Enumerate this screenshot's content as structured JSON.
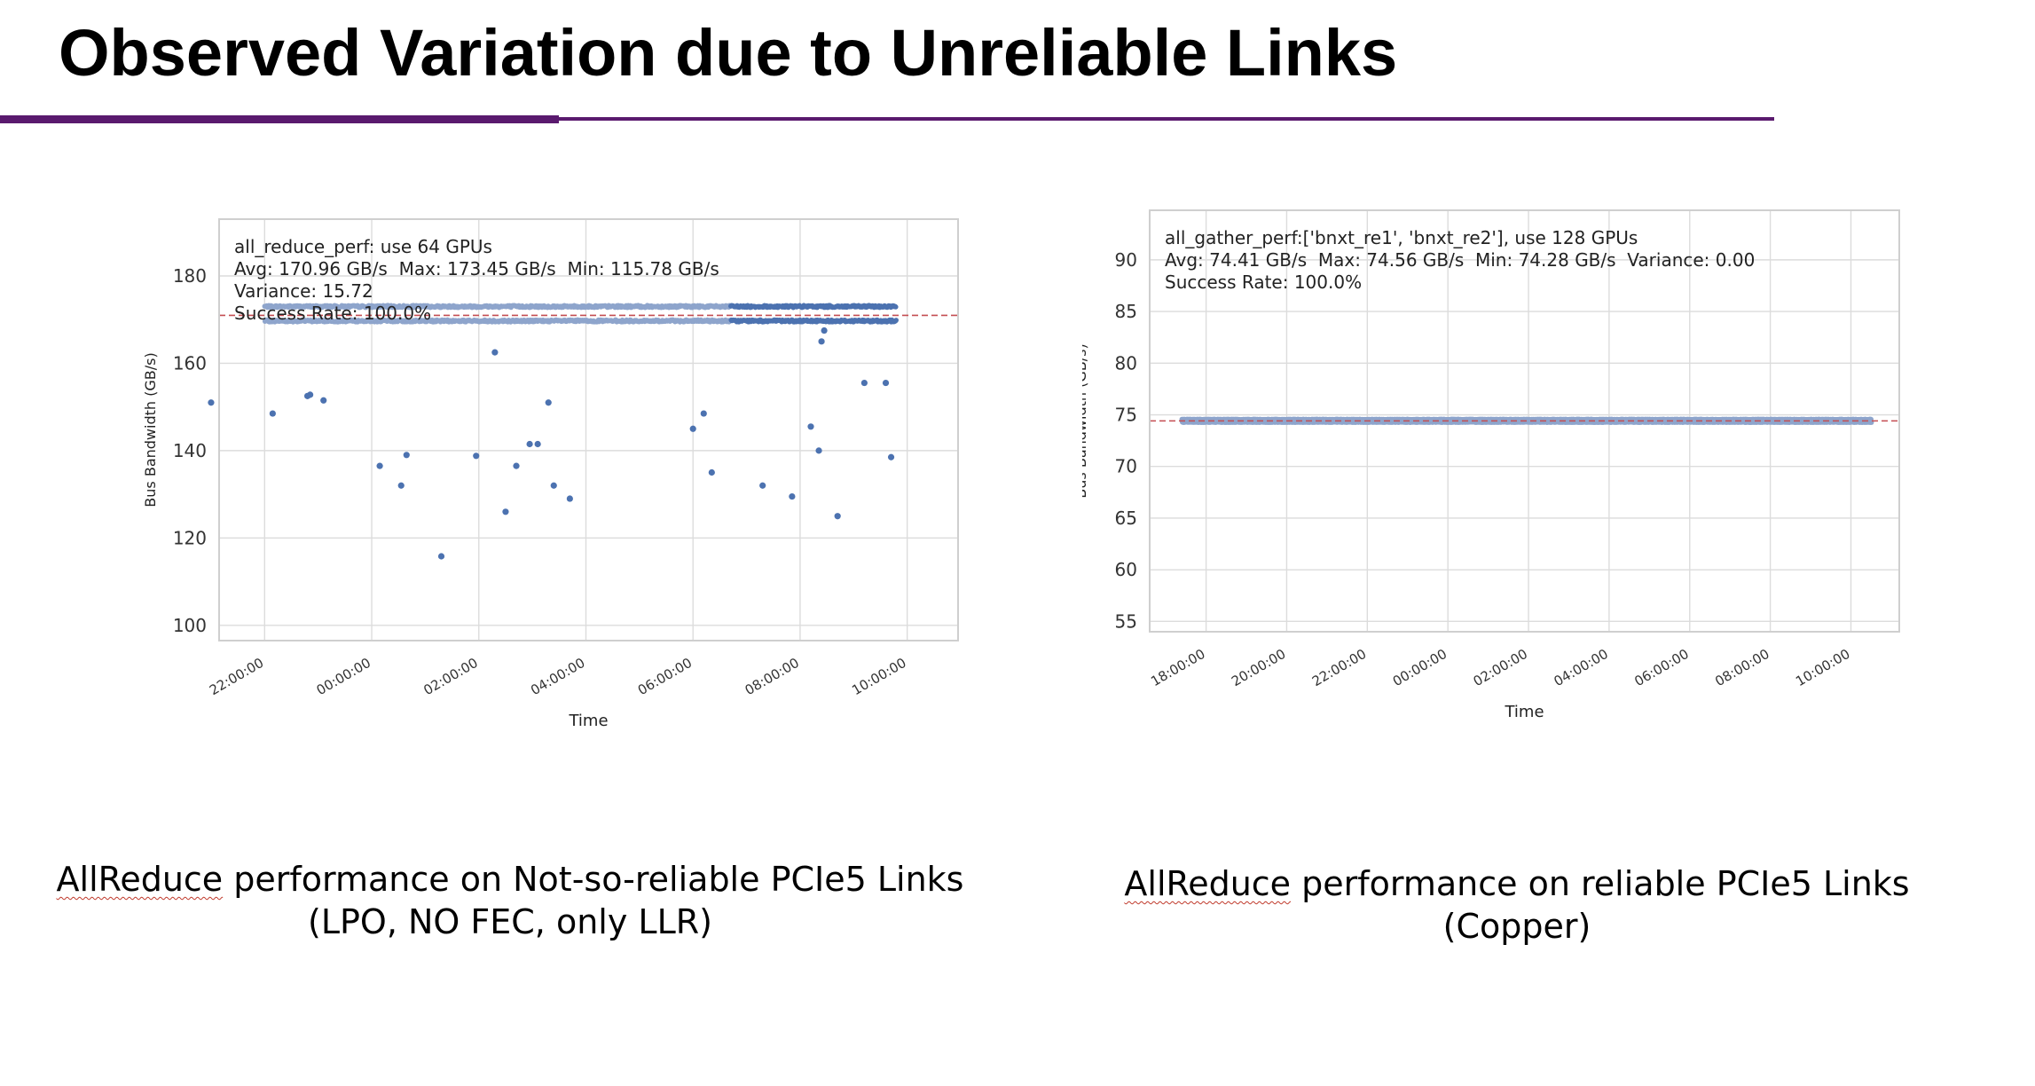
{
  "title": "Observed Variation due to Unreliable Links",
  "colors": {
    "accent_rule": "#5a1a6e",
    "point": "#4c72b0",
    "point_light": "#8ea5cc",
    "avg_line": "#c44e52",
    "grid": "#dcdcdc",
    "frame": "#cfcfcf"
  },
  "captions": [
    {
      "lines": [
        "AllReduce performance on Not-so-reliable PCIe5 Links",
        "(LPO, NO FEC, only LLR)"
      ],
      "squiggle_word": "AllReduce"
    },
    {
      "lines": [
        "AllReduce performance on reliable PCIe5 Links",
        "(Copper)"
      ],
      "squiggle_word": "AllReduce"
    }
  ],
  "chart_data": [
    {
      "type": "scatter",
      "xlabel": "Time",
      "ylabel": "Bus Bandwidth (GB/s)",
      "xlim": [
        -2.85,
        10.95
      ],
      "ylim": [
        96.5,
        193
      ],
      "xticks": [
        -2,
        0,
        2,
        4,
        6,
        8,
        10
      ],
      "xtick_labels": [
        "22:00:00",
        "00:00:00",
        "02:00:00",
        "04:00:00",
        "06:00:00",
        "08:00:00",
        "10:00:00"
      ],
      "yticks": [
        100,
        120,
        140,
        160,
        180
      ],
      "ytick_labels": [
        "100",
        "120",
        "140",
        "160",
        "180"
      ],
      "grid": true,
      "annotation": [
        "all_reduce_perf: use 64 GPUs",
        "Avg: 170.96 GB/s  Max: 173.45 GB/s  Min: 115.78 GB/s",
        "Variance: 15.72",
        "Success Rate: 100.0%"
      ],
      "average_line": 170.96,
      "band": {
        "x_start": -2.0,
        "x_end": 9.8,
        "upper": 173.0,
        "lower": 169.7,
        "dark_from": 6.7
      },
      "points": [
        {
          "x": -3.0,
          "y": 151
        },
        {
          "x": -1.85,
          "y": 148.5
        },
        {
          "x": -1.2,
          "y": 152.5
        },
        {
          "x": -1.15,
          "y": 152.8
        },
        {
          "x": -0.9,
          "y": 151.5
        },
        {
          "x": 0.15,
          "y": 136.5
        },
        {
          "x": 0.55,
          "y": 132
        },
        {
          "x": 0.65,
          "y": 139
        },
        {
          "x": 1.3,
          "y": 115.8
        },
        {
          "x": 1.95,
          "y": 138.8
        },
        {
          "x": 2.3,
          "y": 162.5
        },
        {
          "x": 2.5,
          "y": 126
        },
        {
          "x": 2.7,
          "y": 136.5
        },
        {
          "x": 2.95,
          "y": 141.5
        },
        {
          "x": 3.1,
          "y": 141.5
        },
        {
          "x": 3.3,
          "y": 151
        },
        {
          "x": 3.4,
          "y": 132
        },
        {
          "x": 3.7,
          "y": 129
        },
        {
          "x": 6.0,
          "y": 145
        },
        {
          "x": 6.2,
          "y": 148.5
        },
        {
          "x": 6.35,
          "y": 135
        },
        {
          "x": 7.3,
          "y": 132
        },
        {
          "x": 7.85,
          "y": 129.5
        },
        {
          "x": 8.2,
          "y": 145.5
        },
        {
          "x": 8.35,
          "y": 140
        },
        {
          "x": 8.4,
          "y": 165
        },
        {
          "x": 8.45,
          "y": 167.5
        },
        {
          "x": 8.7,
          "y": 125
        },
        {
          "x": 9.2,
          "y": 155.5
        },
        {
          "x": 9.6,
          "y": 155.5
        },
        {
          "x": 9.7,
          "y": 138.5
        }
      ]
    },
    {
      "type": "scatter",
      "xlabel": "Time",
      "ylabel": "Bus Bandwidth (GB/s)",
      "xlim": [
        16.6,
        35.2
      ],
      "ylim": [
        54,
        94.8
      ],
      "xticks": [
        18,
        20,
        22,
        24,
        26,
        28,
        30,
        32,
        34
      ],
      "xtick_labels": [
        "18:00:00",
        "20:00:00",
        "22:00:00",
        "00:00:00",
        "02:00:00",
        "04:00:00",
        "06:00:00",
        "08:00:00",
        "10:00:00"
      ],
      "yticks": [
        55,
        60,
        65,
        70,
        75,
        80,
        85,
        90
      ],
      "ytick_labels": [
        "55",
        "60",
        "65",
        "70",
        "75",
        "80",
        "85",
        "90"
      ],
      "grid": true,
      "annotation": [
        "all_gather_perf:['bnxt_re1', 'bnxt_re2'], use 128 GPUs",
        "Avg: 74.41 GB/s  Max: 74.56 GB/s  Min: 74.28 GB/s  Variance: 0.00",
        "Success Rate: 100.0%"
      ],
      "average_line": 74.41,
      "band": {
        "x_start": 17.4,
        "x_end": 34.5,
        "upper": 74.56,
        "lower": 74.28,
        "dark_from": null
      },
      "points": []
    }
  ]
}
